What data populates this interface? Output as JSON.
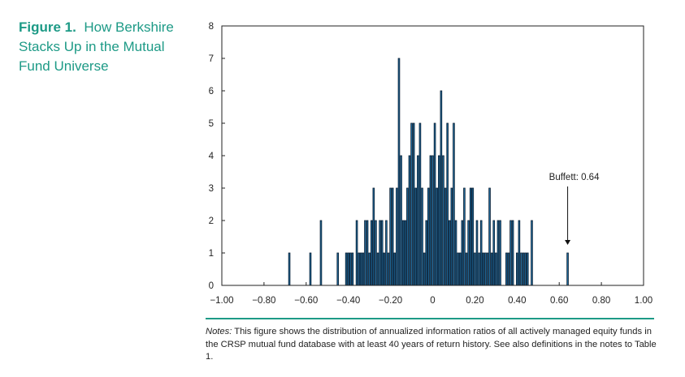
{
  "caption": {
    "label": "Figure 1.",
    "text": "How Berkshire Stacks Up in the Mutual Fund Universe"
  },
  "notes": {
    "label": "Notes:",
    "text": "This figure shows the distribution of annualized information ratios of all actively managed equity funds in the CRSP mutual fund database with at least 40 years of return history. See also definitions in the notes to Table 1."
  },
  "colors": {
    "bar_fill": "#1f6a9c",
    "bar_stroke": "#0b1f33",
    "accent": "#1d9a86"
  },
  "chart_data": {
    "type": "bar",
    "title": "",
    "xlabel": "",
    "ylabel": "",
    "xlim": [
      -1.0,
      1.0
    ],
    "ylim": [
      0,
      8
    ],
    "bin_width": 0.01,
    "grid": false,
    "x_ticks": [
      -1.0,
      -0.8,
      -0.6,
      -0.4,
      -0.2,
      0,
      0.2,
      0.4,
      0.6,
      0.8,
      1.0
    ],
    "x_tick_labels": [
      "−1.00",
      "−0.80",
      "−0.60",
      "−0.40",
      "−0.20",
      "0",
      "0.20",
      "0.40",
      "0.60",
      "0.80",
      "1.00"
    ],
    "y_ticks": [
      0,
      1,
      2,
      3,
      4,
      5,
      6,
      7,
      8
    ],
    "y_tick_labels": [
      "0",
      "1",
      "2",
      "3",
      "4",
      "5",
      "6",
      "7",
      "8"
    ],
    "x": [
      -0.68,
      -0.58,
      -0.53,
      -0.45,
      -0.41,
      -0.4,
      -0.39,
      -0.38,
      -0.36,
      -0.35,
      -0.34,
      -0.33,
      -0.32,
      -0.31,
      -0.3,
      -0.29,
      -0.28,
      -0.27,
      -0.26,
      -0.25,
      -0.24,
      -0.23,
      -0.22,
      -0.21,
      -0.2,
      -0.19,
      -0.18,
      -0.17,
      -0.16,
      -0.15,
      -0.14,
      -0.13,
      -0.12,
      -0.11,
      -0.1,
      -0.09,
      -0.08,
      -0.07,
      -0.06,
      -0.05,
      -0.04,
      -0.03,
      -0.02,
      -0.01,
      0.0,
      0.01,
      0.02,
      0.03,
      0.04,
      0.05,
      0.06,
      0.07,
      0.08,
      0.09,
      0.1,
      0.11,
      0.12,
      0.13,
      0.14,
      0.15,
      0.16,
      0.17,
      0.18,
      0.19,
      0.2,
      0.21,
      0.22,
      0.23,
      0.24,
      0.25,
      0.26,
      0.27,
      0.28,
      0.29,
      0.3,
      0.31,
      0.32,
      0.35,
      0.36,
      0.37,
      0.38,
      0.4,
      0.41,
      0.42,
      0.43,
      0.44,
      0.45,
      0.47,
      0.64
    ],
    "values": [
      1,
      1,
      2,
      1,
      1,
      1,
      1,
      1,
      2,
      1,
      1,
      1,
      2,
      2,
      1,
      2,
      3,
      2,
      1,
      2,
      2,
      1,
      2,
      1,
      3,
      3,
      1,
      3,
      7,
      4,
      2,
      2,
      3,
      4,
      5,
      5,
      3,
      4,
      5,
      3,
      1,
      2,
      3,
      4,
      4,
      5,
      3,
      4,
      6,
      4,
      3,
      5,
      2,
      3,
      5,
      2,
      1,
      1,
      2,
      3,
      1,
      2,
      3,
      3,
      1,
      2,
      1,
      2,
      1,
      1,
      1,
      3,
      1,
      2,
      1,
      2,
      2,
      1,
      1,
      2,
      2,
      1,
      2,
      1,
      1,
      1,
      1,
      2,
      1
    ],
    "annotations": [
      {
        "text": "Buffett: 0.64",
        "x": 0.64,
        "y": 1
      }
    ]
  }
}
